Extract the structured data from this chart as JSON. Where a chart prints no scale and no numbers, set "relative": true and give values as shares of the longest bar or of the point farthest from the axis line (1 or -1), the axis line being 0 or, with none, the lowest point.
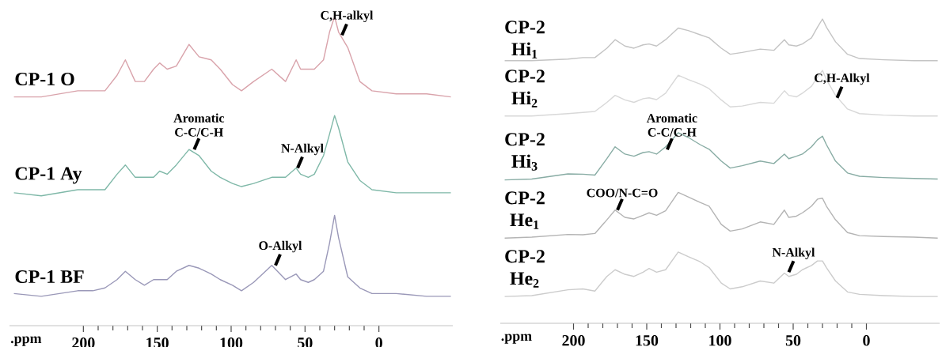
{
  "chart_data": [
    {
      "type": "line",
      "relative": true,
      "tick_labels": "x",
      "xlim": [
        250,
        -50
      ],
      "xlabel": ".ppm",
      "xticks": [
        200,
        150,
        100,
        50,
        0
      ],
      "x": [
        247,
        228.5,
        203.8,
        193.6,
        185.4,
        177.2,
        171.6,
        164.9,
        158.7,
        152.5,
        148.4,
        143.3,
        137.1,
        128.5,
        121.7,
        113.5,
        107.4,
        99.1,
        93.0,
        84.8,
        72.5,
        63.2,
        56.0,
        53.0,
        47.8,
        43.7,
        37.5,
        33.4,
        30.0,
        27.3,
        21.1,
        12.9,
        4.7,
        -11.7,
        -32.3,
        -48.7
      ],
      "series": [
        {
          "name": "CP-1 O",
          "color": "#d9a3ab",
          "values": [
            0.74,
            0.74,
            0.76,
            0.76,
            0.76,
            0.81,
            0.86,
            0.79,
            0.79,
            0.83,
            0.85,
            0.83,
            0.84,
            0.91,
            0.87,
            0.86,
            0.83,
            0.78,
            0.76,
            0.79,
            0.83,
            0.79,
            0.86,
            0.83,
            0.83,
            0.83,
            0.86,
            0.95,
            1,
            0.95,
            0.9,
            0.79,
            0.76,
            0.75,
            0.75,
            0.74
          ]
        },
        {
          "name": "CP-1 Ay",
          "color": "#7fb8a8",
          "values": [
            0.43,
            0.42,
            0.44,
            0.44,
            0.44,
            0.49,
            0.52,
            0.48,
            0.48,
            0.48,
            0.5,
            0.49,
            0.52,
            0.57,
            0.55,
            0.5,
            0.48,
            0.46,
            0.45,
            0.46,
            0.48,
            0.48,
            0.51,
            0.49,
            0.48,
            0.49,
            0.55,
            0.62,
            0.68,
            0.64,
            0.53,
            0.47,
            0.44,
            0.43,
            0.43,
            0.43
          ]
        },
        {
          "name": "CP-1 BF",
          "color": "#9a98b8",
          "values": [
            0.104,
            0.095,
            0.113,
            0.113,
            0.122,
            0.149,
            0.176,
            0.149,
            0.131,
            0.149,
            0.149,
            0.149,
            0.176,
            0.195,
            0.186,
            0.167,
            0.149,
            0.131,
            0.113,
            0.14,
            0.195,
            0.149,
            0.167,
            0.149,
            0.14,
            0.149,
            0.176,
            0.267,
            0.357,
            0.285,
            0.158,
            0.122,
            0.104,
            0.104,
            0.095,
            0.095
          ]
        }
      ],
      "annotations": [
        {
          "text": "C,H-alkyl",
          "x": 25,
          "y": 0.94
        },
        {
          "text": "Aromatic C-C/C-H",
          "x": 125,
          "y": 0.57
        },
        {
          "text": "N-Alkyl",
          "x": 55,
          "y": 0.51
        },
        {
          "text": "O-Alkyl",
          "x": 70,
          "y": 0.195
        }
      ]
    },
    {
      "type": "line",
      "relative": true,
      "tick_labels": "x",
      "xlim": [
        250,
        -50
      ],
      "xlabel": ".ppm",
      "xticks": [
        200,
        150,
        100,
        50,
        0
      ],
      "x": [
        247,
        228.5,
        203.8,
        193.6,
        185.4,
        177.2,
        171.6,
        164.9,
        158.7,
        152.5,
        148.4,
        143.3,
        137.1,
        128.5,
        121.7,
        113.5,
        107.4,
        99.1,
        93.0,
        84.8,
        72.5,
        63.2,
        56.0,
        53.0,
        47.8,
        43.7,
        37.5,
        33.4,
        30.0,
        27.3,
        21.1,
        12.9,
        4.7,
        -11.7,
        -32.3,
        -48.7
      ],
      "series": [
        {
          "name": "CP-2 Hi$_{1}$",
          "color": "#c4c4c4",
          "values": [
            0.863,
            0.863,
            0.868,
            0.873,
            0.873,
            0.904,
            0.932,
            0.911,
            0.904,
            0.915,
            0.918,
            0.911,
            0.932,
            0.97,
            0.962,
            0.948,
            0.938,
            0.904,
            0.884,
            0.89,
            0.901,
            0.897,
            0.932,
            0.915,
            0.911,
            0.918,
            0.938,
            0.973,
            1,
            0.973,
            0.925,
            0.884,
            0.87,
            0.866,
            0.863,
            0.863
          ]
        },
        {
          "name": "CP-2 Hi$_{2}$",
          "color": "#d8d8d8",
          "values": [
            0.681,
            0.681,
            0.689,
            0.693,
            0.696,
            0.726,
            0.749,
            0.734,
            0.726,
            0.738,
            0.741,
            0.735,
            0.756,
            0.815,
            0.801,
            0.786,
            0.771,
            0.734,
            0.711,
            0.714,
            0.726,
            0.723,
            0.764,
            0.749,
            0.744,
            0.756,
            0.779,
            0.809,
            0.831,
            0.801,
            0.749,
            0.704,
            0.689,
            0.684,
            0.681,
            0.681
          ]
        },
        {
          "name": "CP-2 Hi$_{3}$",
          "color": "#88aca4",
          "values": [
            0.471,
            0.474,
            0.491,
            0.49,
            0.487,
            0.541,
            0.58,
            0.556,
            0.549,
            0.561,
            0.564,
            0.556,
            0.58,
            0.626,
            0.611,
            0.587,
            0.572,
            0.533,
            0.51,
            0.518,
            0.533,
            0.525,
            0.556,
            0.541,
            0.549,
            0.556,
            0.58,
            0.603,
            0.615,
            0.587,
            0.533,
            0.494,
            0.483,
            0.479,
            0.476,
            0.474
          ]
        },
        {
          "name": "CP-2 He$_{1}$",
          "color": "#b4b4b4",
          "values": [
            0.28,
            0.283,
            0.292,
            0.291,
            0.295,
            0.34,
            0.372,
            0.348,
            0.343,
            0.355,
            0.363,
            0.355,
            0.37,
            0.43,
            0.415,
            0.397,
            0.385,
            0.325,
            0.303,
            0.31,
            0.333,
            0.325,
            0.372,
            0.348,
            0.352,
            0.363,
            0.385,
            0.408,
            0.411,
            0.385,
            0.34,
            0.298,
            0.288,
            0.285,
            0.283,
            0.28
          ]
        },
        {
          "name": "CP-2 He$_{2}$",
          "color": "#cccccc",
          "values": [
            0.088,
            0.091,
            0.11,
            0.113,
            0.106,
            0.154,
            0.176,
            0.161,
            0.154,
            0.168,
            0.18,
            0.168,
            0.176,
            0.234,
            0.219,
            0.202,
            0.183,
            0.132,
            0.113,
            0.12,
            0.139,
            0.132,
            0.165,
            0.154,
            0.161,
            0.176,
            0.19,
            0.205,
            0.205,
            0.183,
            0.139,
            0.103,
            0.095,
            0.091,
            0.088,
            0.088
          ]
        }
      ],
      "annotations": [
        {
          "text": "C,H-Alkyl",
          "x": 20,
          "y": 0.741
        },
        {
          "text": "Aromatic C-C/C-H",
          "x": 136,
          "y": 0.571
        },
        {
          "text": "COO/N-C=O",
          "x": 170,
          "y": 0.372
        },
        {
          "text": "N-Alkyl",
          "x": 53,
          "y": 0.168
        }
      ]
    }
  ]
}
